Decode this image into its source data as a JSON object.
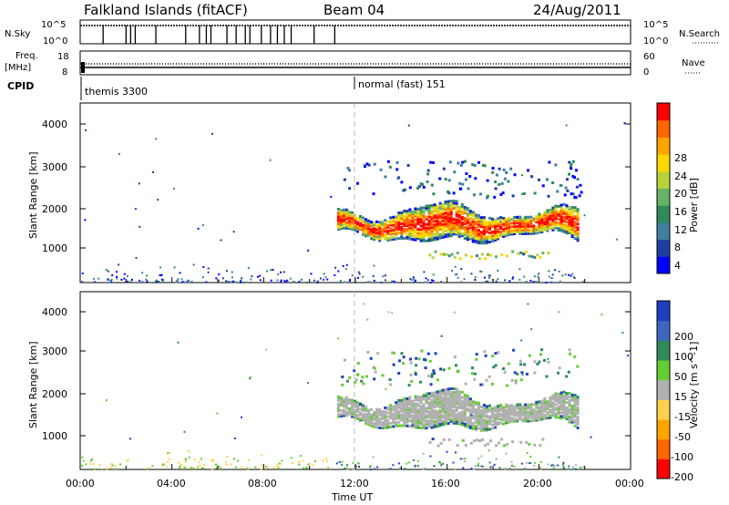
{
  "header": {
    "station": "Falkland Islands (fitACF)",
    "beam": "Beam 04",
    "date": "24/Aug/2011"
  },
  "top_panels": {
    "nsky_label": "N.Sky",
    "nsky_ticks_left": [
      "10^5",
      "10^0"
    ],
    "nsky_ticks_right": [
      "10^5",
      "10^0"
    ],
    "nsearch_label": "N.Search",
    "freq_label": "Freq.",
    "freq_unit": "[MHz]",
    "freq_ticks": [
      "18",
      "8"
    ],
    "nave_ticks": [
      "60",
      "0"
    ],
    "nave_label": "Nave",
    "cpid_label": "CPID",
    "cpid_modes": [
      "themis 3300",
      "normal (fast) 151"
    ]
  },
  "chart_data": [
    {
      "type": "heatmap",
      "name": "power",
      "ylabel": "Slant Range [km]",
      "yticks": [
        "4000",
        "3000",
        "2000",
        "1000"
      ],
      "ylim": [
        180,
        4600
      ],
      "xlim_hours": [
        0,
        24
      ],
      "colorbar": {
        "label": "Power [dB]",
        "ticks": [
          "28",
          "24",
          "20",
          "16",
          "12",
          "8",
          "4"
        ],
        "colors": [
          "#0000ff",
          "#1f3fa0",
          "#3f7fa0",
          "#2e8b57",
          "#66b266",
          "#b8d23a",
          "#ffd700",
          "#ffa500",
          "#ff6600",
          "#ff0000"
        ]
      },
      "echo_region": {
        "start_hour": 11.2,
        "end_hour": 21.7,
        "range_km": [
          1300,
          2300
        ],
        "peak_db": 28
      }
    },
    {
      "type": "heatmap",
      "name": "velocity",
      "ylabel": "Slant Range [km]",
      "yticks": [
        "4000",
        "3000",
        "2000",
        "1000"
      ],
      "ylim": [
        180,
        4600
      ],
      "xlim_hours": [
        0,
        24
      ],
      "colorbar": {
        "label": "Velocity [m s^-1]",
        "ticks": [
          "200",
          "100",
          "50",
          "15",
          "-15",
          "-50",
          "-100",
          "-200"
        ],
        "colors": [
          "#1f3fbf",
          "#3f66bf",
          "#2e8b57",
          "#66cc33",
          "#b0b0b0",
          "#ffd24d",
          "#ffa500",
          "#ff6600",
          "#ff0000"
        ]
      },
      "echo_region": {
        "start_hour": 11.2,
        "end_hour": 21.7,
        "range_km": [
          1300,
          2300
        ],
        "dominant_velocity": "-15 to 15"
      }
    }
  ],
  "xaxis": {
    "ticks": [
      "00:00",
      "04:00",
      "08:00",
      "12:00",
      "16:00",
      "20:00",
      "00:00"
    ],
    "label": "Time UT"
  }
}
